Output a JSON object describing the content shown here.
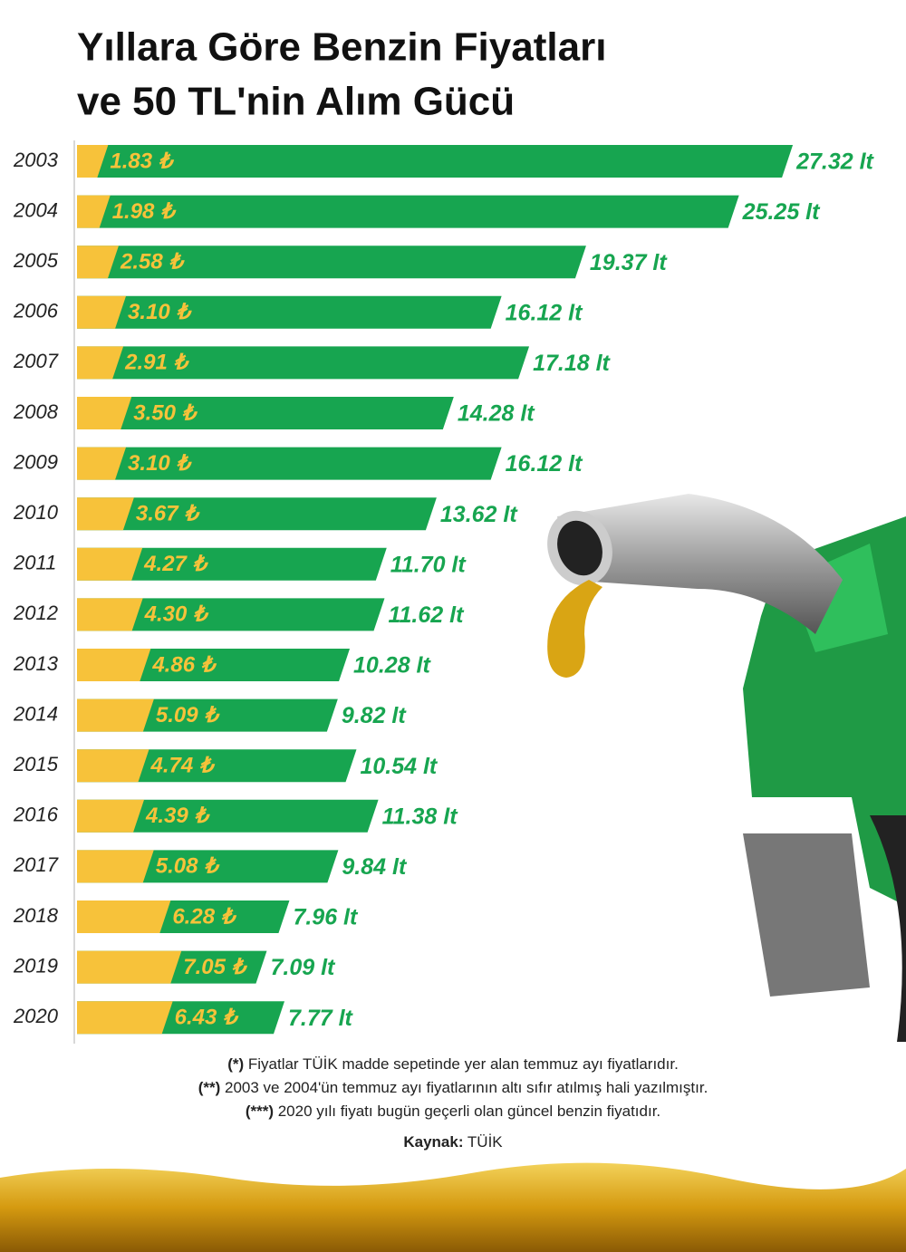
{
  "chart_data": {
    "type": "bar",
    "orientation": "horizontal",
    "title": [
      "Yıllara Göre Benzin Fiyatları",
      "ve 50 TL'nin Alım Gücü"
    ],
    "categories": [
      "2003",
      "2004",
      "2005",
      "2006",
      "2007",
      "2008",
      "2009",
      "2010",
      "2011",
      "2012",
      "2013",
      "2014",
      "2015",
      "2016",
      "2017",
      "2018",
      "2019",
      "2020"
    ],
    "series": [
      {
        "name": "price",
        "color": "#f7c23a",
        "values": [
          1.83,
          1.98,
          2.58,
          3.1,
          2.91,
          3.5,
          3.1,
          3.67,
          4.27,
          4.3,
          4.86,
          5.09,
          4.74,
          4.39,
          5.08,
          6.28,
          7.05,
          6.43
        ],
        "value_labels": [
          "1.83 ₺",
          "1.98 ₺",
          "2.58 ₺",
          "3.10 ₺",
          "2.91 ₺",
          "3.50 ₺",
          "3.10 ₺",
          "3.67 ₺",
          "4.27 ₺",
          "4.30 ₺",
          "4.86 ₺",
          "5.09 ₺",
          "4.74 ₺",
          "4.39 ₺",
          "5.08 ₺",
          "6.28 ₺",
          "7.05 ₺",
          "6.43 ₺"
        ]
      },
      {
        "name": "liters",
        "color": "#17a550",
        "values": [
          27.32,
          25.25,
          19.37,
          16.12,
          17.18,
          14.28,
          16.12,
          13.62,
          11.7,
          11.62,
          10.28,
          9.82,
          10.54,
          11.38,
          9.84,
          7.96,
          7.09,
          7.77
        ],
        "value_labels": [
          "27.32 lt",
          "25.25 lt",
          "19.37 lt",
          "16.12 lt",
          "17.18 lt",
          "14.28 lt",
          "16.12 lt",
          "13.62 lt",
          "11.70 lt",
          "11.62 lt",
          "10.28 lt",
          "9.82 lt",
          "10.54 lt",
          "11.38 lt",
          "9.84 lt",
          "7.96 lt",
          "7.09 lt",
          "7.77 lt"
        ]
      }
    ],
    "notes": [
      {
        "marker": "(*)",
        "text": "Fiyatlar TÜİK madde sepetinde yer alan temmuz ayı fiyatlarıdır."
      },
      {
        "marker": "(**)",
        "text": "2003 ve 2004'ün temmuz ayı fiyatlarının altı sıfır atılmış hali yazılmıştır."
      },
      {
        "marker": "(***)",
        "text": "2020 yılı fiyatı bugün geçerli olan güncel benzin fiyatıdır."
      }
    ],
    "source": {
      "label": "Kaynak:",
      "text": "TÜİK"
    }
  }
}
